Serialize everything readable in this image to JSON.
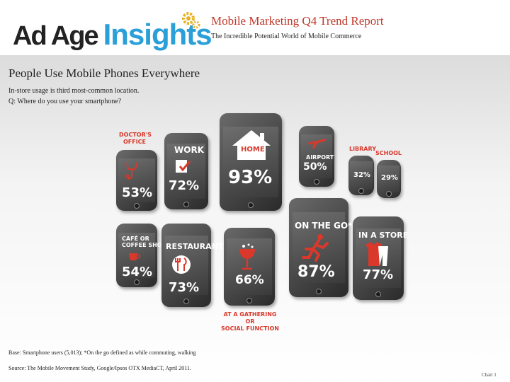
{
  "header": {
    "logo_text_1": "Ad Age",
    "logo_text_2": "Insights",
    "report_title": "Mobile Marketing Q4 Trend Report",
    "report_subtitle": "The Incredible Potential World of Mobile Commerce"
  },
  "main": {
    "title": "People Use Mobile Phones Everywhere",
    "subtitle_1": "In-store usage is third most-common location.",
    "subtitle_2": "Q: Where do you use your smartphone?"
  },
  "locations": [
    {
      "name": "DOCTOR'S OFFICE",
      "percent": "53%",
      "icon": "stethoscope-icon"
    },
    {
      "name": "WORK",
      "percent": "72%",
      "icon": "checklist-icon"
    },
    {
      "name": "HOME",
      "percent": "93%",
      "icon": "house-icon"
    },
    {
      "name": "AIRPORT",
      "percent": "50%",
      "icon": "airplane-icon"
    },
    {
      "name": "LIBRARY",
      "percent": "32%",
      "icon": ""
    },
    {
      "name": "SCHOOL",
      "percent": "29%",
      "icon": ""
    },
    {
      "name": "CAFÉ OR COFFEE SHOP",
      "percent": "54%",
      "icon": "coffee-cup-icon"
    },
    {
      "name": "RESTAURANT",
      "percent": "73%",
      "icon": "fork-knife-icon"
    },
    {
      "name": "AT A GATHERING OR SOCIAL FUNCTION",
      "percent": "66%",
      "icon": "cocktail-glass-icon"
    },
    {
      "name": "ON THE GO*",
      "percent": "87%",
      "icon": "running-person-icon"
    },
    {
      "name": "IN A STORE",
      "percent": "77%",
      "icon": "clothing-icon"
    }
  ],
  "footer": {
    "base": "Base: Smartphone users (5,013); *On the go defined as while commuting, walking",
    "source": "Source: The Mobile Movement Study, Google/Ipsos OTX MediaCT, April 2011.",
    "chart_no": "Chart 1"
  },
  "colors": {
    "accent_red": "#d9382b",
    "insights_blue": "#2a9fd8",
    "gear_yellow": "#e8b020"
  }
}
